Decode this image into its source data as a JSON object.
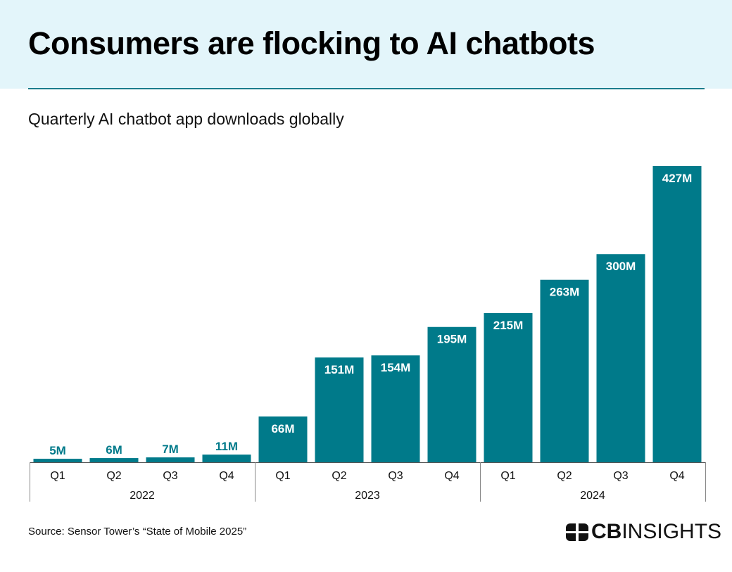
{
  "header": {
    "title": "Consumers are flocking to AI chatbots",
    "subtitle": "Quarterly AI chatbot app downloads globally"
  },
  "footer": {
    "source": "Source: Sensor Tower’s “State of Mobile 2025”",
    "logo_bold": "CB",
    "logo_light": "INSIGHTS"
  },
  "colors": {
    "bar": "#007a8a",
    "band": "#e3f5fa",
    "rule": "#1c7d8c"
  },
  "chart_data": {
    "type": "bar",
    "title": "Consumers are flocking to AI chatbots",
    "subtitle": "Quarterly AI chatbot app downloads globally",
    "categories": [
      "Q1",
      "Q2",
      "Q3",
      "Q4",
      "Q1",
      "Q2",
      "Q3",
      "Q4",
      "Q1",
      "Q2",
      "Q3",
      "Q4"
    ],
    "groups": [
      {
        "label": "2022",
        "count": 4
      },
      {
        "label": "2023",
        "count": 4
      },
      {
        "label": "2024",
        "count": 4
      }
    ],
    "values": [
      5,
      6,
      7,
      11,
      66,
      151,
      154,
      195,
      215,
      263,
      300,
      427
    ],
    "data_labels": [
      "5M",
      "6M",
      "7M",
      "11M",
      "66M",
      "151M",
      "154M",
      "195M",
      "215M",
      "263M",
      "300M",
      "427M"
    ],
    "unit": "M",
    "xlabel": "",
    "ylabel": "",
    "ylim": [
      0,
      427
    ],
    "grid": false,
    "legend": "none"
  }
}
